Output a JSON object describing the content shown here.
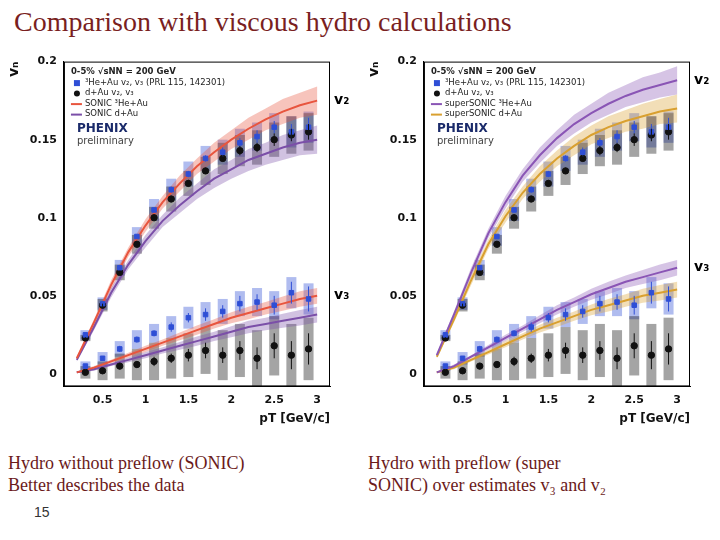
{
  "slide": {
    "title": "Comparison with viscous hydro calculations",
    "captions": [
      [
        "Hydro without preflow (SONIC)",
        "Better describes the data"
      ],
      [
        "Hydro with preflow (super",
        "SONIC) over estimates v₃ and v₂"
      ]
    ],
    "page_number": 15
  },
  "chart_data": [
    {
      "type": "line",
      "header": "0-5% √sNN = 200 GeV",
      "logo": [
        "PHENIX",
        "preliminary"
      ],
      "xlabel": "pT [GeV/c]",
      "ylabel": "vₙ",
      "xlim": [
        0.05,
        3.15
      ],
      "xticks": [
        0.5,
        1,
        1.5,
        2,
        2.5,
        3
      ],
      "ylim": [
        -0.008,
        0.2
      ],
      "yticks": [
        0,
        0.05,
        0.1,
        0.15,
        0.2
      ],
      "grid": false,
      "legend": "upper left",
      "annotations": {
        "v2": "v₂",
        "v3": "v₃"
      },
      "series": [
        {
          "name": "³He+Au v₂, v₃ (PRL 115, 142301)",
          "type": "scatter",
          "marker": "square",
          "color": "#2f4fd6",
          "x": [
            0.3,
            0.5,
            0.7,
            0.9,
            1.1,
            1.3,
            1.5,
            1.7,
            1.9,
            2.1,
            2.3,
            2.5,
            2.7,
            2.9
          ],
          "values": {
            "v2": [
              0.025,
              0.045,
              0.068,
              0.088,
              0.105,
              0.118,
              0.128,
              0.138,
              0.142,
              0.148,
              0.152,
              0.158,
              0.155,
              0.158
            ],
            "v3": [
              0.005,
              0.01,
              0.016,
              0.022,
              0.026,
              0.03,
              0.036,
              0.038,
              0.04,
              0.045,
              0.046,
              0.044,
              0.052,
              0.048
            ]
          },
          "errors": {
            "v2": [
              0.001,
              0.001,
              0.001,
              0.001,
              0.001,
              0.002,
              0.002,
              0.002,
              0.003,
              0.003,
              0.004,
              0.004,
              0.005,
              0.006
            ],
            "v3": [
              0.001,
              0.001,
              0.002,
              0.002,
              0.002,
              0.003,
              0.003,
              0.004,
              0.004,
              0.005,
              0.005,
              0.006,
              0.007,
              0.008
            ]
          },
          "sys": {
            "v2": [
              0.003,
              0.004,
              0.005,
              0.006,
              0.007,
              0.007,
              0.008,
              0.008,
              0.008,
              0.009,
              0.009,
              0.009,
              0.01,
              0.01
            ],
            "v3": [
              0.003,
              0.004,
              0.005,
              0.006,
              0.006,
              0.007,
              0.007,
              0.008,
              0.008,
              0.008,
              0.009,
              0.009,
              0.01,
              0.01
            ]
          }
        },
        {
          "name": "d+Au v₂, v₃",
          "type": "scatter",
          "marker": "circle",
          "color": "#111111",
          "x": [
            0.3,
            0.5,
            0.7,
            0.9,
            1.1,
            1.3,
            1.5,
            1.7,
            1.9,
            2.1,
            2.3,
            2.5,
            2.7,
            2.9
          ],
          "values": {
            "v2": [
              0.023,
              0.044,
              0.065,
              0.083,
              0.1,
              0.112,
              0.122,
              0.13,
              0.138,
              0.143,
              0.145,
              0.15,
              0.153,
              0.155
            ],
            "v3": [
              0.001,
              0.002,
              0.005,
              0.006,
              0.008,
              0.01,
              0.012,
              0.015,
              0.012,
              0.015,
              0.01,
              0.018,
              0.012,
              0.016
            ]
          },
          "errors": {
            "v2": [
              0.0005,
              0.001,
              0.001,
              0.001,
              0.001,
              0.001,
              0.002,
              0.002,
              0.002,
              0.003,
              0.003,
              0.004,
              0.004,
              0.005
            ],
            "v3": [
              0.001,
              0.001,
              0.002,
              0.002,
              0.003,
              0.003,
              0.004,
              0.005,
              0.005,
              0.006,
              0.007,
              0.008,
              0.009,
              0.01
            ]
          },
          "sys": {
            "v2": [
              0.002,
              0.004,
              0.005,
              0.006,
              0.007,
              0.008,
              0.008,
              0.009,
              0.01,
              0.01,
              0.011,
              0.011,
              0.012,
              0.012
            ],
            "v3": [
              0.004,
              0.006,
              0.008,
              0.01,
              0.012,
              0.013,
              0.014,
              0.015,
              0.016,
              0.017,
              0.018,
              0.019,
              0.02,
              0.02
            ]
          }
        },
        {
          "name": "SONIC ³He+Au",
          "type": "line",
          "line_style": "solid",
          "color": "#e8553e",
          "x": [
            0.2,
            0.4,
            0.6,
            0.8,
            1.0,
            1.2,
            1.4,
            1.6,
            1.8,
            2.0,
            2.2,
            2.4,
            2.6,
            2.8,
            3.0
          ],
          "values": {
            "v2": [
              0.01,
              0.033,
              0.057,
              0.078,
              0.095,
              0.11,
              0.122,
              0.133,
              0.142,
              0.15,
              0.157,
              0.163,
              0.168,
              0.172,
              0.175
            ],
            "v3": [
              0.001,
              0.004,
              0.008,
              0.012,
              0.016,
              0.02,
              0.024,
              0.028,
              0.032,
              0.036,
              0.039,
              0.042,
              0.045,
              0.048,
              0.05
            ]
          },
          "band": {
            "v2": [
              0.001,
              0.002,
              0.003,
              0.003,
              0.004,
              0.004,
              0.005,
              0.005,
              0.006,
              0.006,
              0.007,
              0.007,
              0.008,
              0.008,
              0.009
            ],
            "v3": [
              0.0005,
              0.001,
              0.001,
              0.0015,
              0.002,
              0.002,
              0.0025,
              0.003,
              0.003,
              0.0035,
              0.004,
              0.004,
              0.0045,
              0.005,
              0.005
            ]
          }
        },
        {
          "name": "SONIC d+Au",
          "type": "line",
          "line_style": "solid",
          "color": "#7b4fa8",
          "x": [
            0.2,
            0.4,
            0.6,
            0.8,
            1.0,
            1.2,
            1.4,
            1.6,
            1.8,
            2.0,
            2.2,
            2.4,
            2.6,
            2.8,
            3.0
          ],
          "values": {
            "v2": [
              0.009,
              0.03,
              0.052,
              0.07,
              0.085,
              0.098,
              0.108,
              0.117,
              0.125,
              0.131,
              0.137,
              0.141,
              0.145,
              0.148,
              0.15
            ],
            "v3": [
              0.001,
              0.003,
              0.006,
              0.009,
              0.012,
              0.015,
              0.018,
              0.021,
              0.024,
              0.027,
              0.03,
              0.032,
              0.034,
              0.036,
              0.038
            ]
          },
          "band": {
            "v2": [
              0.001,
              0.002,
              0.003,
              0.003,
              0.004,
              0.004,
              0.005,
              0.005,
              0.006,
              0.006,
              0.007,
              0.007,
              0.008,
              0.008,
              0.009
            ],
            "v3": [
              0.0005,
              0.001,
              0.001,
              0.0015,
              0.002,
              0.002,
              0.0025,
              0.003,
              0.003,
              0.0035,
              0.004,
              0.004,
              0.0045,
              0.005,
              0.005
            ]
          }
        }
      ]
    },
    {
      "type": "line",
      "header": "0-5% √sNN = 200 GeV",
      "logo": [
        "PHENIX",
        "preliminary"
      ],
      "xlabel": "pT [GeV/c]",
      "ylabel": "vₙ",
      "xlim": [
        0.05,
        3.15
      ],
      "xticks": [
        0.5,
        1,
        1.5,
        2,
        2.5,
        3
      ],
      "ylim": [
        -0.008,
        0.2
      ],
      "yticks": [
        0,
        0.05,
        0.1,
        0.15,
        0.2
      ],
      "grid": false,
      "legend": "upper left",
      "annotations": {
        "v2": "v₂",
        "v3": "v₃"
      },
      "series": [
        {
          "name": "³He+Au v₂, v₃ (PRL 115, 142301)",
          "type": "scatter",
          "marker": "square",
          "color": "#2f4fd6",
          "x": [
            0.3,
            0.5,
            0.7,
            0.9,
            1.1,
            1.3,
            1.5,
            1.7,
            1.9,
            2.1,
            2.3,
            2.5,
            2.7,
            2.9
          ],
          "values": {
            "v2": [
              0.025,
              0.045,
              0.068,
              0.088,
              0.105,
              0.118,
              0.128,
              0.138,
              0.142,
              0.148,
              0.152,
              0.158,
              0.155,
              0.158
            ],
            "v3": [
              0.005,
              0.01,
              0.016,
              0.022,
              0.026,
              0.03,
              0.036,
              0.038,
              0.04,
              0.045,
              0.046,
              0.044,
              0.052,
              0.048
            ]
          },
          "errors": {
            "v2": [
              0.001,
              0.001,
              0.001,
              0.001,
              0.001,
              0.002,
              0.002,
              0.002,
              0.003,
              0.003,
              0.004,
              0.004,
              0.005,
              0.006
            ],
            "v3": [
              0.001,
              0.001,
              0.002,
              0.002,
              0.002,
              0.003,
              0.003,
              0.004,
              0.004,
              0.005,
              0.005,
              0.006,
              0.007,
              0.008
            ]
          },
          "sys": {
            "v2": [
              0.003,
              0.004,
              0.005,
              0.006,
              0.007,
              0.007,
              0.008,
              0.008,
              0.008,
              0.009,
              0.009,
              0.009,
              0.01,
              0.01
            ],
            "v3": [
              0.003,
              0.004,
              0.005,
              0.006,
              0.006,
              0.007,
              0.007,
              0.008,
              0.008,
              0.008,
              0.009,
              0.009,
              0.01,
              0.01
            ]
          }
        },
        {
          "name": "d+Au v₂, v₃",
          "type": "scatter",
          "marker": "circle",
          "color": "#111111",
          "x": [
            0.3,
            0.5,
            0.7,
            0.9,
            1.1,
            1.3,
            1.5,
            1.7,
            1.9,
            2.1,
            2.3,
            2.5,
            2.7,
            2.9
          ],
          "values": {
            "v2": [
              0.023,
              0.044,
              0.065,
              0.083,
              0.1,
              0.112,
              0.122,
              0.13,
              0.138,
              0.143,
              0.145,
              0.15,
              0.153,
              0.155
            ],
            "v3": [
              0.001,
              0.002,
              0.005,
              0.006,
              0.008,
              0.01,
              0.012,
              0.015,
              0.012,
              0.015,
              0.01,
              0.018,
              0.012,
              0.016
            ]
          },
          "errors": {
            "v2": [
              0.0005,
              0.001,
              0.001,
              0.001,
              0.001,
              0.001,
              0.002,
              0.002,
              0.002,
              0.003,
              0.003,
              0.004,
              0.004,
              0.005
            ],
            "v3": [
              0.001,
              0.001,
              0.002,
              0.002,
              0.003,
              0.003,
              0.004,
              0.005,
              0.005,
              0.006,
              0.007,
              0.008,
              0.009,
              0.01
            ]
          },
          "sys": {
            "v2": [
              0.002,
              0.004,
              0.005,
              0.006,
              0.007,
              0.008,
              0.008,
              0.009,
              0.01,
              0.01,
              0.011,
              0.011,
              0.012,
              0.012
            ],
            "v3": [
              0.004,
              0.006,
              0.008,
              0.01,
              0.012,
              0.013,
              0.014,
              0.015,
              0.016,
              0.017,
              0.018,
              0.019,
              0.02,
              0.02
            ]
          }
        },
        {
          "name": "superSONIC ³He+Au",
          "type": "line",
          "line_style": "solid",
          "color": "#8a55b5",
          "x": [
            0.2,
            0.4,
            0.6,
            0.8,
            1.0,
            1.2,
            1.4,
            1.6,
            1.8,
            2.0,
            2.2,
            2.4,
            2.6,
            2.8,
            3.0
          ],
          "values": {
            "v2": [
              0.012,
              0.038,
              0.065,
              0.09,
              0.11,
              0.127,
              0.14,
              0.151,
              0.16,
              0.167,
              0.173,
              0.178,
              0.182,
              0.185,
              0.188
            ],
            "v3": [
              0.001,
              0.005,
              0.011,
              0.017,
              0.023,
              0.029,
              0.035,
              0.041,
              0.046,
              0.051,
              0.055,
              0.059,
              0.062,
              0.065,
              0.068
            ]
          },
          "band": {
            "v2": [
              0.001,
              0.002,
              0.003,
              0.003,
              0.004,
              0.004,
              0.005,
              0.005,
              0.006,
              0.006,
              0.007,
              0.007,
              0.008,
              0.008,
              0.009
            ],
            "v3": [
              0.0005,
              0.001,
              0.001,
              0.0015,
              0.002,
              0.002,
              0.0025,
              0.003,
              0.003,
              0.0035,
              0.004,
              0.004,
              0.0045,
              0.005,
              0.005
            ]
          }
        },
        {
          "name": "superSONIC d+Au",
          "type": "line",
          "line_style": "solid",
          "color": "#d9a030",
          "x": [
            0.2,
            0.4,
            0.6,
            0.8,
            1.0,
            1.2,
            1.4,
            1.6,
            1.8,
            2.0,
            2.2,
            2.4,
            2.6,
            2.8,
            3.0
          ],
          "values": {
            "v2": [
              0.011,
              0.035,
              0.06,
              0.083,
              0.101,
              0.116,
              0.128,
              0.138,
              0.146,
              0.153,
              0.158,
              0.162,
              0.165,
              0.168,
              0.17
            ],
            "v3": [
              0.001,
              0.004,
              0.009,
              0.014,
              0.019,
              0.024,
              0.029,
              0.033,
              0.037,
              0.041,
              0.044,
              0.047,
              0.05,
              0.052,
              0.054
            ]
          },
          "band": {
            "v2": [
              0.001,
              0.002,
              0.003,
              0.003,
              0.004,
              0.004,
              0.005,
              0.005,
              0.006,
              0.006,
              0.007,
              0.007,
              0.008,
              0.008,
              0.009
            ],
            "v3": [
              0.0005,
              0.001,
              0.001,
              0.0015,
              0.002,
              0.002,
              0.0025,
              0.003,
              0.003,
              0.0035,
              0.004,
              0.004,
              0.0045,
              0.005,
              0.005
            ]
          }
        }
      ]
    }
  ]
}
